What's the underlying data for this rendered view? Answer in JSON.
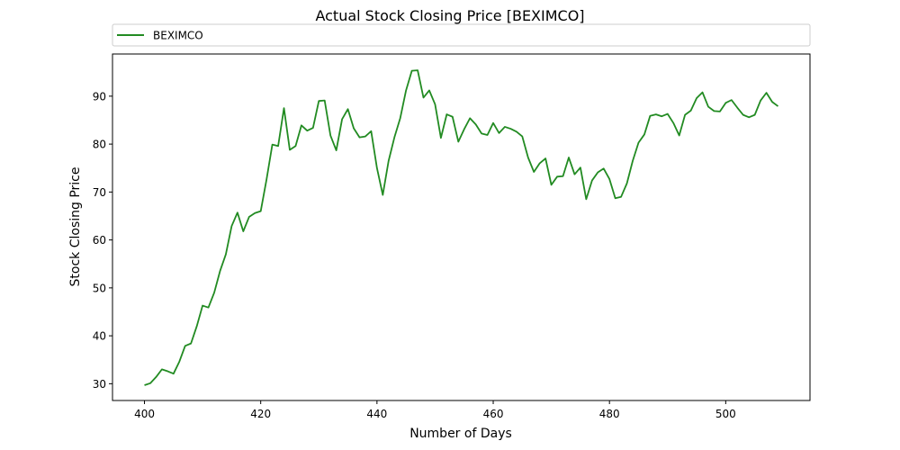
{
  "chart_data": {
    "type": "line",
    "title": "Actual Stock Closing Price [BEXIMCO]",
    "xlabel": "Number of Days",
    "ylabel": "Stock Closing Price",
    "xlim": [
      394.5,
      514.5
    ],
    "ylim": [
      26.5,
      98.8
    ],
    "xticks": [
      400,
      420,
      440,
      460,
      480,
      500
    ],
    "yticks": [
      30,
      40,
      50,
      60,
      70,
      80,
      90
    ],
    "grid": false,
    "legend_position": "top-left-outside",
    "series": [
      {
        "name": "BEXIMCO",
        "color": "#228b22",
        "x": [
          400,
          401,
          402,
          403,
          404,
          405,
          406,
          407,
          408,
          409,
          410,
          411,
          412,
          413,
          414,
          415,
          416,
          417,
          418,
          419,
          420,
          421,
          422,
          423,
          424,
          425,
          426,
          427,
          428,
          429,
          430,
          431,
          432,
          433,
          434,
          435,
          436,
          437,
          438,
          439,
          440,
          441,
          442,
          443,
          444,
          445,
          446,
          447,
          448,
          449,
          450,
          451,
          452,
          453,
          454,
          455,
          456,
          457,
          458,
          459,
          460,
          461,
          462,
          463,
          464,
          465,
          466,
          467,
          468,
          469,
          470,
          471,
          472,
          473,
          474,
          475,
          476,
          477,
          478,
          479,
          480,
          481,
          482,
          483,
          484,
          485,
          486,
          487,
          488,
          489,
          490,
          491,
          492,
          493,
          494,
          495,
          496,
          497,
          498,
          499,
          500,
          501,
          502,
          503,
          504,
          505,
          506,
          507,
          508,
          509
        ],
        "y": [
          29.7,
          30.1,
          31.4,
          33.0,
          32.6,
          32.1,
          34.6,
          37.9,
          38.4,
          42.0,
          46.3,
          45.9,
          49.0,
          53.5,
          57.0,
          62.9,
          65.7,
          61.8,
          64.8,
          65.6,
          66.0,
          72.6,
          79.9,
          79.6,
          87.5,
          78.8,
          79.6,
          83.9,
          82.8,
          83.4,
          89.0,
          89.1,
          81.8,
          78.7,
          85.2,
          87.3,
          83.3,
          81.4,
          81.6,
          82.7,
          75.0,
          69.4,
          76.5,
          81.4,
          85.4,
          91.2,
          95.3,
          95.4,
          89.7,
          91.2,
          88.3,
          81.3,
          86.2,
          85.7,
          80.5,
          83.1,
          85.4,
          84.1,
          82.2,
          81.9,
          84.4,
          82.3,
          83.6,
          83.2,
          82.6,
          81.6,
          77.2,
          74.2,
          76.0,
          77.0,
          71.5,
          73.2,
          73.3,
          77.2,
          73.7,
          75.1,
          68.5,
          72.4,
          74.1,
          74.9,
          72.7,
          68.7,
          69.0,
          71.8,
          76.5,
          80.3,
          82.0,
          85.9,
          86.2,
          85.8,
          86.3,
          84.4,
          81.8,
          86.1,
          87.0,
          89.6,
          90.8,
          87.8,
          86.9,
          86.8,
          88.6,
          89.2,
          87.6,
          86.1,
          85.6,
          86.1,
          89.1,
          90.7,
          88.8,
          87.9
        ]
      }
    ]
  }
}
